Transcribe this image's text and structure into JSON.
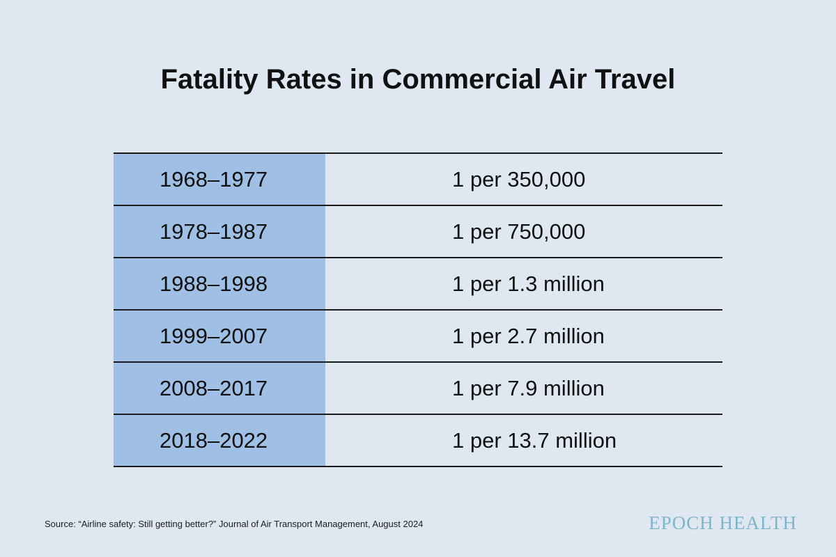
{
  "title": "Fatality Rates in Commercial Air Travel",
  "chart_data": {
    "type": "table",
    "title": "Fatality Rates in Commercial Air Travel",
    "rows": [
      {
        "period": "1968–1977",
        "rate": "1 per 350,000",
        "one_in": 350000
      },
      {
        "period": "1978–1987",
        "rate": "1 per 750,000",
        "one_in": 750000
      },
      {
        "period": "1988–1998",
        "rate": "1 per 1.3 million",
        "one_in": 1300000
      },
      {
        "period": "1999–2007",
        "rate": "1 per 2.7 million",
        "one_in": 2700000
      },
      {
        "period": "2008–2017",
        "rate": "1 per 7.9 million",
        "one_in": 7900000
      },
      {
        "period": "2018–2022",
        "rate": "1 per 13.7 million",
        "one_in": 13700000
      }
    ]
  },
  "source": "Source: “Airline safety: Still getting better?” Journal of Air Transport Management, August 2024",
  "brand": "EPOCH HEALTH",
  "colors": {
    "background": "#dfe8f1",
    "period_column": "#9fc0e4",
    "text": "#111111",
    "rule": "#1a1a1a",
    "brand": "#7fb5c9"
  }
}
